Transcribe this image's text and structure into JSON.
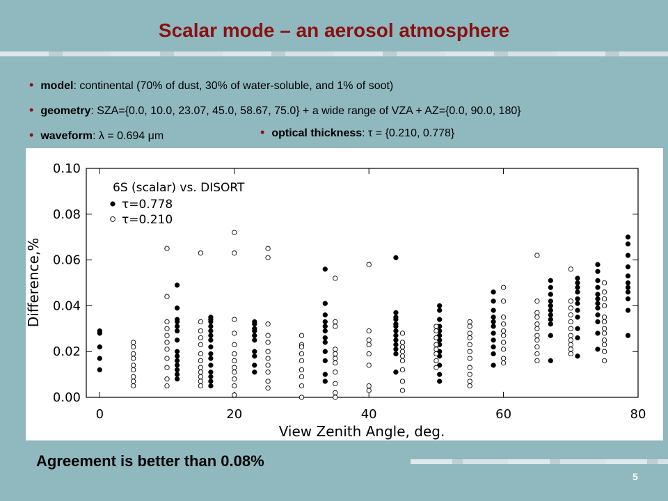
{
  "slide": {
    "title": "Scalar mode – an aerosol atmosphere",
    "footer": "Agreement is better than 0.08%",
    "page_number": "5",
    "title_color": "#8b1010",
    "background": "#8fb8bf"
  },
  "bullets": [
    {
      "key": "model",
      "text": ": continental (70% of dust, 30% of water-soluble, and 1% of soot)"
    },
    {
      "key": "geometry",
      "text": ": SZA={0.0, 10.0, 23.07, 45.0, 58.67, 75.0} + a wide range of VZA + AZ={0.0, 90.0, 180}"
    },
    {
      "key": "waveform",
      "text": ":  λ = 0.694 μm"
    },
    {
      "key": "optical thickness",
      "text": ":  τ = {0.210, 0.778}"
    }
  ],
  "chart_data": {
    "type": "scatter",
    "annotation": "6S (scalar) vs. DISORT",
    "xlabel": "View Zenith Angle, deg.",
    "ylabel": "Difference,%",
    "xlim": [
      -2,
      80
    ],
    "ylim": [
      0,
      0.1
    ],
    "xticks": [
      0,
      20,
      40,
      60,
      80
    ],
    "yticks": [
      "0.00",
      "0.02",
      "0.04",
      "0.06",
      "0.08",
      "0.10"
    ],
    "legend_location": "top-left",
    "series": [
      {
        "name": "τ=0.778",
        "marker": "filled",
        "points": [
          [
            0,
            0.012
          ],
          [
            0,
            0.017
          ],
          [
            0,
            0.022
          ],
          [
            0,
            0.028
          ],
          [
            0,
            0.029
          ],
          [
            11.5,
            0.049
          ],
          [
            11.5,
            0.039
          ],
          [
            11.5,
            0.034
          ],
          [
            11.5,
            0.033
          ],
          [
            11.5,
            0.031
          ],
          [
            11.5,
            0.029
          ],
          [
            11.5,
            0.025
          ],
          [
            11.5,
            0.02
          ],
          [
            11.5,
            0.018
          ],
          [
            11.5,
            0.016
          ],
          [
            11.5,
            0.014
          ],
          [
            11.5,
            0.012
          ],
          [
            11.5,
            0.01
          ],
          [
            11.5,
            0.008
          ],
          [
            16.5,
            0.035
          ],
          [
            16.5,
            0.034
          ],
          [
            16.5,
            0.033
          ],
          [
            16.5,
            0.031
          ],
          [
            16.5,
            0.029
          ],
          [
            16.5,
            0.027
          ],
          [
            16.5,
            0.025
          ],
          [
            16.5,
            0.022
          ],
          [
            16.5,
            0.019
          ],
          [
            16.5,
            0.017
          ],
          [
            16.5,
            0.014
          ],
          [
            16.5,
            0.011
          ],
          [
            16.5,
            0.009
          ],
          [
            16.5,
            0.007
          ],
          [
            16.5,
            0.005
          ],
          [
            23,
            0.033
          ],
          [
            23,
            0.032
          ],
          [
            23,
            0.03
          ],
          [
            23,
            0.029
          ],
          [
            23,
            0.027
          ],
          [
            23,
            0.025
          ],
          [
            23,
            0.02
          ],
          [
            23,
            0.018
          ],
          [
            23,
            0.014
          ],
          [
            23,
            0.011
          ],
          [
            33.5,
            0.056
          ],
          [
            33.5,
            0.041
          ],
          [
            33.5,
            0.036
          ],
          [
            33.5,
            0.033
          ],
          [
            33.5,
            0.031
          ],
          [
            33.5,
            0.029
          ],
          [
            33.5,
            0.026
          ],
          [
            33.5,
            0.024
          ],
          [
            33.5,
            0.02
          ],
          [
            33.5,
            0.016
          ],
          [
            33.5,
            0.01
          ],
          [
            33.5,
            0.007
          ],
          [
            44,
            0.061
          ],
          [
            44,
            0.037
          ],
          [
            44,
            0.035
          ],
          [
            44,
            0.034
          ],
          [
            44,
            0.032
          ],
          [
            44,
            0.031
          ],
          [
            44,
            0.029
          ],
          [
            44,
            0.027
          ],
          [
            44,
            0.025
          ],
          [
            44,
            0.023
          ],
          [
            44,
            0.021
          ],
          [
            44,
            0.019
          ],
          [
            44,
            0.011
          ],
          [
            50.5,
            0.04
          ],
          [
            50.5,
            0.038
          ],
          [
            50.5,
            0.034
          ],
          [
            50.5,
            0.031
          ],
          [
            50.5,
            0.029
          ],
          [
            50.5,
            0.027
          ],
          [
            50.5,
            0.025
          ],
          [
            50.5,
            0.023
          ],
          [
            50.5,
            0.02
          ],
          [
            50.5,
            0.018
          ],
          [
            50.5,
            0.014
          ],
          [
            50.5,
            0.01
          ],
          [
            50.5,
            0.007
          ],
          [
            58.5,
            0.046
          ],
          [
            58.5,
            0.042
          ],
          [
            58.5,
            0.038
          ],
          [
            58.5,
            0.035
          ],
          [
            58.5,
            0.033
          ],
          [
            58.5,
            0.031
          ],
          [
            58.5,
            0.028
          ],
          [
            58.5,
            0.025
          ],
          [
            58.5,
            0.022
          ],
          [
            58.5,
            0.019
          ],
          [
            58.5,
            0.014
          ],
          [
            67,
            0.051
          ],
          [
            67,
            0.048
          ],
          [
            67,
            0.045
          ],
          [
            67,
            0.042
          ],
          [
            67,
            0.04
          ],
          [
            67,
            0.038
          ],
          [
            67,
            0.036
          ],
          [
            67,
            0.034
          ],
          [
            67,
            0.032
          ],
          [
            67,
            0.027
          ],
          [
            67,
            0.016
          ],
          [
            71,
            0.052
          ],
          [
            71,
            0.05
          ],
          [
            71,
            0.048
          ],
          [
            71,
            0.046
          ],
          [
            71,
            0.043
          ],
          [
            71,
            0.041
          ],
          [
            71,
            0.038
          ],
          [
            71,
            0.035
          ],
          [
            71,
            0.03
          ],
          [
            71,
            0.026
          ],
          [
            71,
            0.018
          ],
          [
            74,
            0.058
          ],
          [
            74,
            0.055
          ],
          [
            74,
            0.051
          ],
          [
            74,
            0.048
          ],
          [
            74,
            0.045
          ],
          [
            74,
            0.043
          ],
          [
            74,
            0.041
          ],
          [
            74,
            0.039
          ],
          [
            74,
            0.036
          ],
          [
            74,
            0.033
          ],
          [
            74,
            0.028
          ],
          [
            74,
            0.021
          ],
          [
            78.5,
            0.07
          ],
          [
            78.5,
            0.067
          ],
          [
            78.5,
            0.062
          ],
          [
            78.5,
            0.057
          ],
          [
            78.5,
            0.053
          ],
          [
            78.5,
            0.05
          ],
          [
            78.5,
            0.048
          ],
          [
            78.5,
            0.046
          ],
          [
            78.5,
            0.043
          ],
          [
            78.5,
            0.038
          ],
          [
            78.5,
            0.027
          ]
        ]
      },
      {
        "name": "τ=0.210",
        "marker": "open",
        "points": [
          [
            5,
            0.024
          ],
          [
            5,
            0.022
          ],
          [
            5,
            0.019
          ],
          [
            5,
            0.017
          ],
          [
            5,
            0.014
          ],
          [
            5,
            0.012
          ],
          [
            5,
            0.009
          ],
          [
            5,
            0.007
          ],
          [
            5,
            0.005
          ],
          [
            10,
            0.065
          ],
          [
            10,
            0.044
          ],
          [
            10,
            0.033
          ],
          [
            10,
            0.03
          ],
          [
            10,
            0.027
          ],
          [
            10,
            0.024
          ],
          [
            10,
            0.021
          ],
          [
            10,
            0.017
          ],
          [
            10,
            0.013
          ],
          [
            10,
            0.008
          ],
          [
            10,
            0.005
          ],
          [
            15,
            0.063
          ],
          [
            15,
            0.033
          ],
          [
            15,
            0.029
          ],
          [
            15,
            0.026
          ],
          [
            15,
            0.023
          ],
          [
            15,
            0.019
          ],
          [
            15,
            0.016
          ],
          [
            15,
            0.013
          ],
          [
            15,
            0.011
          ],
          [
            15,
            0.009
          ],
          [
            15,
            0.007
          ],
          [
            15,
            0.005
          ],
          [
            20,
            0.072
          ],
          [
            20,
            0.063
          ],
          [
            20,
            0.034
          ],
          [
            20,
            0.028
          ],
          [
            20,
            0.023
          ],
          [
            20,
            0.019
          ],
          [
            20,
            0.016
          ],
          [
            20,
            0.013
          ],
          [
            20,
            0.011
          ],
          [
            20,
            0.008
          ],
          [
            20,
            0.005
          ],
          [
            20,
            0.001
          ],
          [
            25,
            0.065
          ],
          [
            25,
            0.061
          ],
          [
            25,
            0.032
          ],
          [
            25,
            0.027
          ],
          [
            25,
            0.024
          ],
          [
            25,
            0.02
          ],
          [
            25,
            0.017
          ],
          [
            25,
            0.014
          ],
          [
            25,
            0.011
          ],
          [
            25,
            0.007
          ],
          [
            25,
            0.004
          ],
          [
            30,
            0.027
          ],
          [
            30,
            0.023
          ],
          [
            30,
            0.022
          ],
          [
            30,
            0.019
          ],
          [
            30,
            0.016
          ],
          [
            30,
            0.012
          ],
          [
            30,
            0.009
          ],
          [
            30,
            0.005
          ],
          [
            30,
            0.0
          ],
          [
            35,
            0.052
          ],
          [
            35,
            0.033
          ],
          [
            35,
            0.031
          ],
          [
            35,
            0.021
          ],
          [
            35,
            0.019
          ],
          [
            35,
            0.017
          ],
          [
            35,
            0.015
          ],
          [
            35,
            0.011
          ],
          [
            35,
            0.006
          ],
          [
            35,
            0.002
          ],
          [
            35,
            0.0
          ],
          [
            40,
            0.058
          ],
          [
            40,
            0.029
          ],
          [
            40,
            0.025
          ],
          [
            40,
            0.023
          ],
          [
            40,
            0.019
          ],
          [
            40,
            0.014
          ],
          [
            40,
            0.005
          ],
          [
            40,
            0.003
          ],
          [
            45,
            0.028
          ],
          [
            45,
            0.024
          ],
          [
            45,
            0.022
          ],
          [
            45,
            0.02
          ],
          [
            45,
            0.018
          ],
          [
            45,
            0.016
          ],
          [
            45,
            0.012
          ],
          [
            45,
            0.007
          ],
          [
            45,
            0.003
          ],
          [
            50,
            0.031
          ],
          [
            50,
            0.029
          ],
          [
            50,
            0.026
          ],
          [
            50,
            0.023
          ],
          [
            50,
            0.021
          ],
          [
            50,
            0.019
          ],
          [
            50,
            0.016
          ],
          [
            50,
            0.013
          ],
          [
            55,
            0.033
          ],
          [
            55,
            0.031
          ],
          [
            55,
            0.028
          ],
          [
            55,
            0.026
          ],
          [
            55,
            0.023
          ],
          [
            55,
            0.02
          ],
          [
            55,
            0.017
          ],
          [
            55,
            0.013
          ],
          [
            55,
            0.01
          ],
          [
            55,
            0.007
          ],
          [
            55,
            0.005
          ],
          [
            60,
            0.048
          ],
          [
            60,
            0.042
          ],
          [
            60,
            0.035
          ],
          [
            60,
            0.032
          ],
          [
            60,
            0.029
          ],
          [
            60,
            0.027
          ],
          [
            60,
            0.024
          ],
          [
            60,
            0.021
          ],
          [
            60,
            0.017
          ],
          [
            60,
            0.015
          ],
          [
            65,
            0.062
          ],
          [
            65,
            0.042
          ],
          [
            65,
            0.037
          ],
          [
            65,
            0.035
          ],
          [
            65,
            0.032
          ],
          [
            65,
            0.03
          ],
          [
            65,
            0.027
          ],
          [
            65,
            0.025
          ],
          [
            65,
            0.022
          ],
          [
            65,
            0.019
          ],
          [
            65,
            0.016
          ],
          [
            70,
            0.056
          ],
          [
            70,
            0.042
          ],
          [
            70,
            0.039
          ],
          [
            70,
            0.036
          ],
          [
            70,
            0.033
          ],
          [
            70,
            0.03
          ],
          [
            70,
            0.027
          ],
          [
            70,
            0.025
          ],
          [
            70,
            0.023
          ],
          [
            70,
            0.021
          ],
          [
            70,
            0.019
          ],
          [
            75,
            0.05
          ],
          [
            75,
            0.046
          ],
          [
            75,
            0.043
          ],
          [
            75,
            0.04
          ],
          [
            75,
            0.035
          ],
          [
            75,
            0.033
          ],
          [
            75,
            0.03
          ],
          [
            75,
            0.028
          ],
          [
            75,
            0.025
          ],
          [
            75,
            0.023
          ],
          [
            75,
            0.02
          ],
          [
            75,
            0.016
          ]
        ]
      }
    ]
  }
}
